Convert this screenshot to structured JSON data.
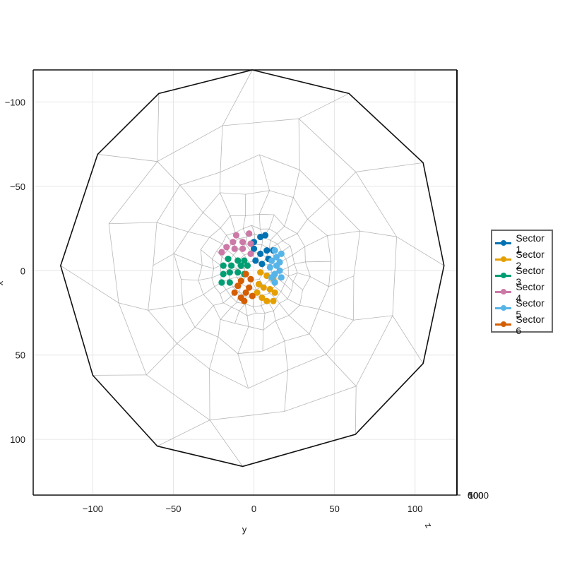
{
  "chart_data": {
    "type": "scatter",
    "xlabel": "y",
    "ylabel": "x",
    "zlabel": "z",
    "xlim": [
      -137,
      126
    ],
    "ylim": [
      -119,
      133
    ],
    "xticks": [
      -100,
      -50,
      0,
      50,
      100
    ],
    "xtick_labels": [
      "−100",
      "−50",
      "0",
      "50",
      "100"
    ],
    "yticks": [
      -100,
      -50,
      0,
      50,
      100
    ],
    "ytick_labels": [
      "−100",
      "−50",
      "0",
      "50",
      "100"
    ],
    "ztick_labels": [
      "0",
      "500",
      "1000"
    ],
    "grid": true,
    "legend_position": "right",
    "outer_boundary": [
      [
        -1,
        -119
      ],
      [
        59,
        -105
      ],
      [
        105,
        -64
      ],
      [
        118,
        -3
      ],
      [
        105,
        55
      ],
      [
        63,
        97
      ],
      [
        -7,
        116
      ],
      [
        -60,
        104
      ],
      [
        -100,
        62
      ],
      [
        -120,
        -3
      ],
      [
        -97,
        -69
      ],
      [
        -59,
        -105
      ]
    ],
    "series": [
      {
        "name": "Sector 1",
        "color": "#0072b2",
        "points": [
          [
            0,
            -17
          ],
          [
            4,
            -20
          ],
          [
            7,
            -21
          ],
          [
            0,
            -13
          ],
          [
            4,
            -10
          ],
          [
            8,
            -12
          ],
          [
            12,
            -12
          ],
          [
            9,
            -7
          ],
          [
            5,
            -4
          ],
          [
            1,
            -6
          ]
        ]
      },
      {
        "name": "Sector 2",
        "color": "#e69f00",
        "points": [
          [
            4,
            1
          ],
          [
            8,
            3
          ],
          [
            12,
            5
          ],
          [
            3,
            8
          ],
          [
            6,
            10
          ],
          [
            10,
            11
          ],
          [
            13,
            13
          ],
          [
            2,
            13
          ],
          [
            5,
            16
          ],
          [
            8,
            18
          ],
          [
            12,
            18
          ]
        ]
      },
      {
        "name": "Sector 3",
        "color": "#009e73",
        "points": [
          [
            -16,
            -7
          ],
          [
            -10,
            -6
          ],
          [
            -6,
            -6
          ],
          [
            -19,
            -3
          ],
          [
            -14,
            -3
          ],
          [
            -8,
            -3
          ],
          [
            -4,
            -3
          ],
          [
            -19,
            2
          ],
          [
            -15,
            1
          ],
          [
            -10,
            1
          ],
          [
            -6,
            2
          ],
          [
            -20,
            7
          ],
          [
            -15,
            7
          ]
        ]
      },
      {
        "name": "Sector 4",
        "color": "#cc79a7",
        "points": [
          [
            -11,
            -21
          ],
          [
            -3,
            -22
          ],
          [
            -13,
            -17
          ],
          [
            -7,
            -17
          ],
          [
            -2,
            -16
          ],
          [
            -17,
            -14
          ],
          [
            -12,
            -13
          ],
          [
            -7,
            -13
          ],
          [
            -2,
            -10
          ],
          [
            -20,
            -11
          ]
        ]
      },
      {
        "name": "Sector 5",
        "color": "#56b4e9",
        "points": [
          [
            13,
            -12
          ],
          [
            17,
            -10
          ],
          [
            14,
            -8
          ],
          [
            11,
            -6
          ],
          [
            16,
            -5
          ],
          [
            14,
            -3
          ],
          [
            10,
            -2
          ],
          [
            16,
            0
          ],
          [
            13,
            2
          ],
          [
            17,
            4
          ],
          [
            11,
            4
          ],
          [
            13,
            7
          ]
        ]
      },
      {
        "name": "Sector 6",
        "color": "#d55e00",
        "points": [
          [
            -5,
            2
          ],
          [
            -2,
            5
          ],
          [
            -8,
            6
          ],
          [
            -3,
            10
          ],
          [
            -10,
            9
          ],
          [
            -5,
            13
          ],
          [
            -12,
            13
          ],
          [
            -8,
            16
          ],
          [
            -1,
            15
          ],
          [
            -6,
            18
          ]
        ]
      }
    ]
  }
}
